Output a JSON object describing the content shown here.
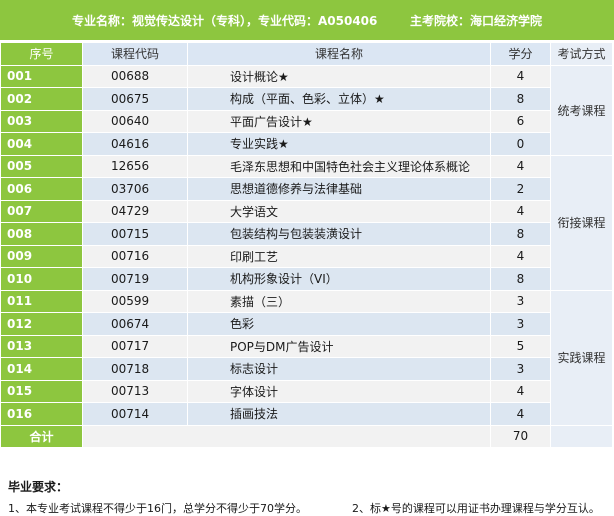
{
  "header": {
    "major": "专业名称：视觉传达设计（专科），专业代码：A050406",
    "school": "主考院校：海口经济学院"
  },
  "table": {
    "headers": {
      "seq": "序号",
      "code": "课程代码",
      "name": "课程名称",
      "credit": "学分",
      "exam": "考试方式"
    },
    "rows": [
      {
        "seq": "001",
        "code": "00688",
        "name": "设计概论★",
        "credit": "4"
      },
      {
        "seq": "002",
        "code": "00675",
        "name": "构成（平面、色彩、立体）★",
        "credit": "8"
      },
      {
        "seq": "003",
        "code": "00640",
        "name": "平面广告设计★",
        "credit": "6"
      },
      {
        "seq": "004",
        "code": "04616",
        "name": "专业实践★",
        "credit": "0"
      },
      {
        "seq": "005",
        "code": "12656",
        "name": "毛泽东思想和中国特色社会主义理论体系概论",
        "credit": "4"
      },
      {
        "seq": "006",
        "code": "03706",
        "name": "思想道德修养与法律基础",
        "credit": "2"
      },
      {
        "seq": "007",
        "code": "04729",
        "name": "大学语文",
        "credit": "4"
      },
      {
        "seq": "008",
        "code": "00715",
        "name": "包装结构与包装装潢设计",
        "credit": "8"
      },
      {
        "seq": "009",
        "code": "00716",
        "name": "印刷工艺",
        "credit": "4"
      },
      {
        "seq": "010",
        "code": "00719",
        "name": "机构形象设计（VI）",
        "credit": "8"
      },
      {
        "seq": "011",
        "code": "00599",
        "name": "素描（三）",
        "credit": "3"
      },
      {
        "seq": "012",
        "code": "00674",
        "name": "色彩",
        "credit": "3"
      },
      {
        "seq": "013",
        "code": "00717",
        "name": "POP与DM广告设计",
        "credit": "5"
      },
      {
        "seq": "014",
        "code": "00718",
        "name": "标志设计",
        "credit": "3"
      },
      {
        "seq": "015",
        "code": "00713",
        "name": "字体设计",
        "credit": "4"
      },
      {
        "seq": "016",
        "code": "00714",
        "name": "插画技法",
        "credit": "4"
      }
    ],
    "exam_groups": [
      "统考课程",
      "衔接课程",
      "实践课程"
    ],
    "total_label": "合计",
    "total_value": "70"
  },
  "requirements": {
    "title": "毕业要求：",
    "items": [
      "1、本专业考试课程不得少于16门，总学分不得少于70学分。",
      "2、标★号的课程可以用证书办理课程与学分互认。"
    ]
  }
}
